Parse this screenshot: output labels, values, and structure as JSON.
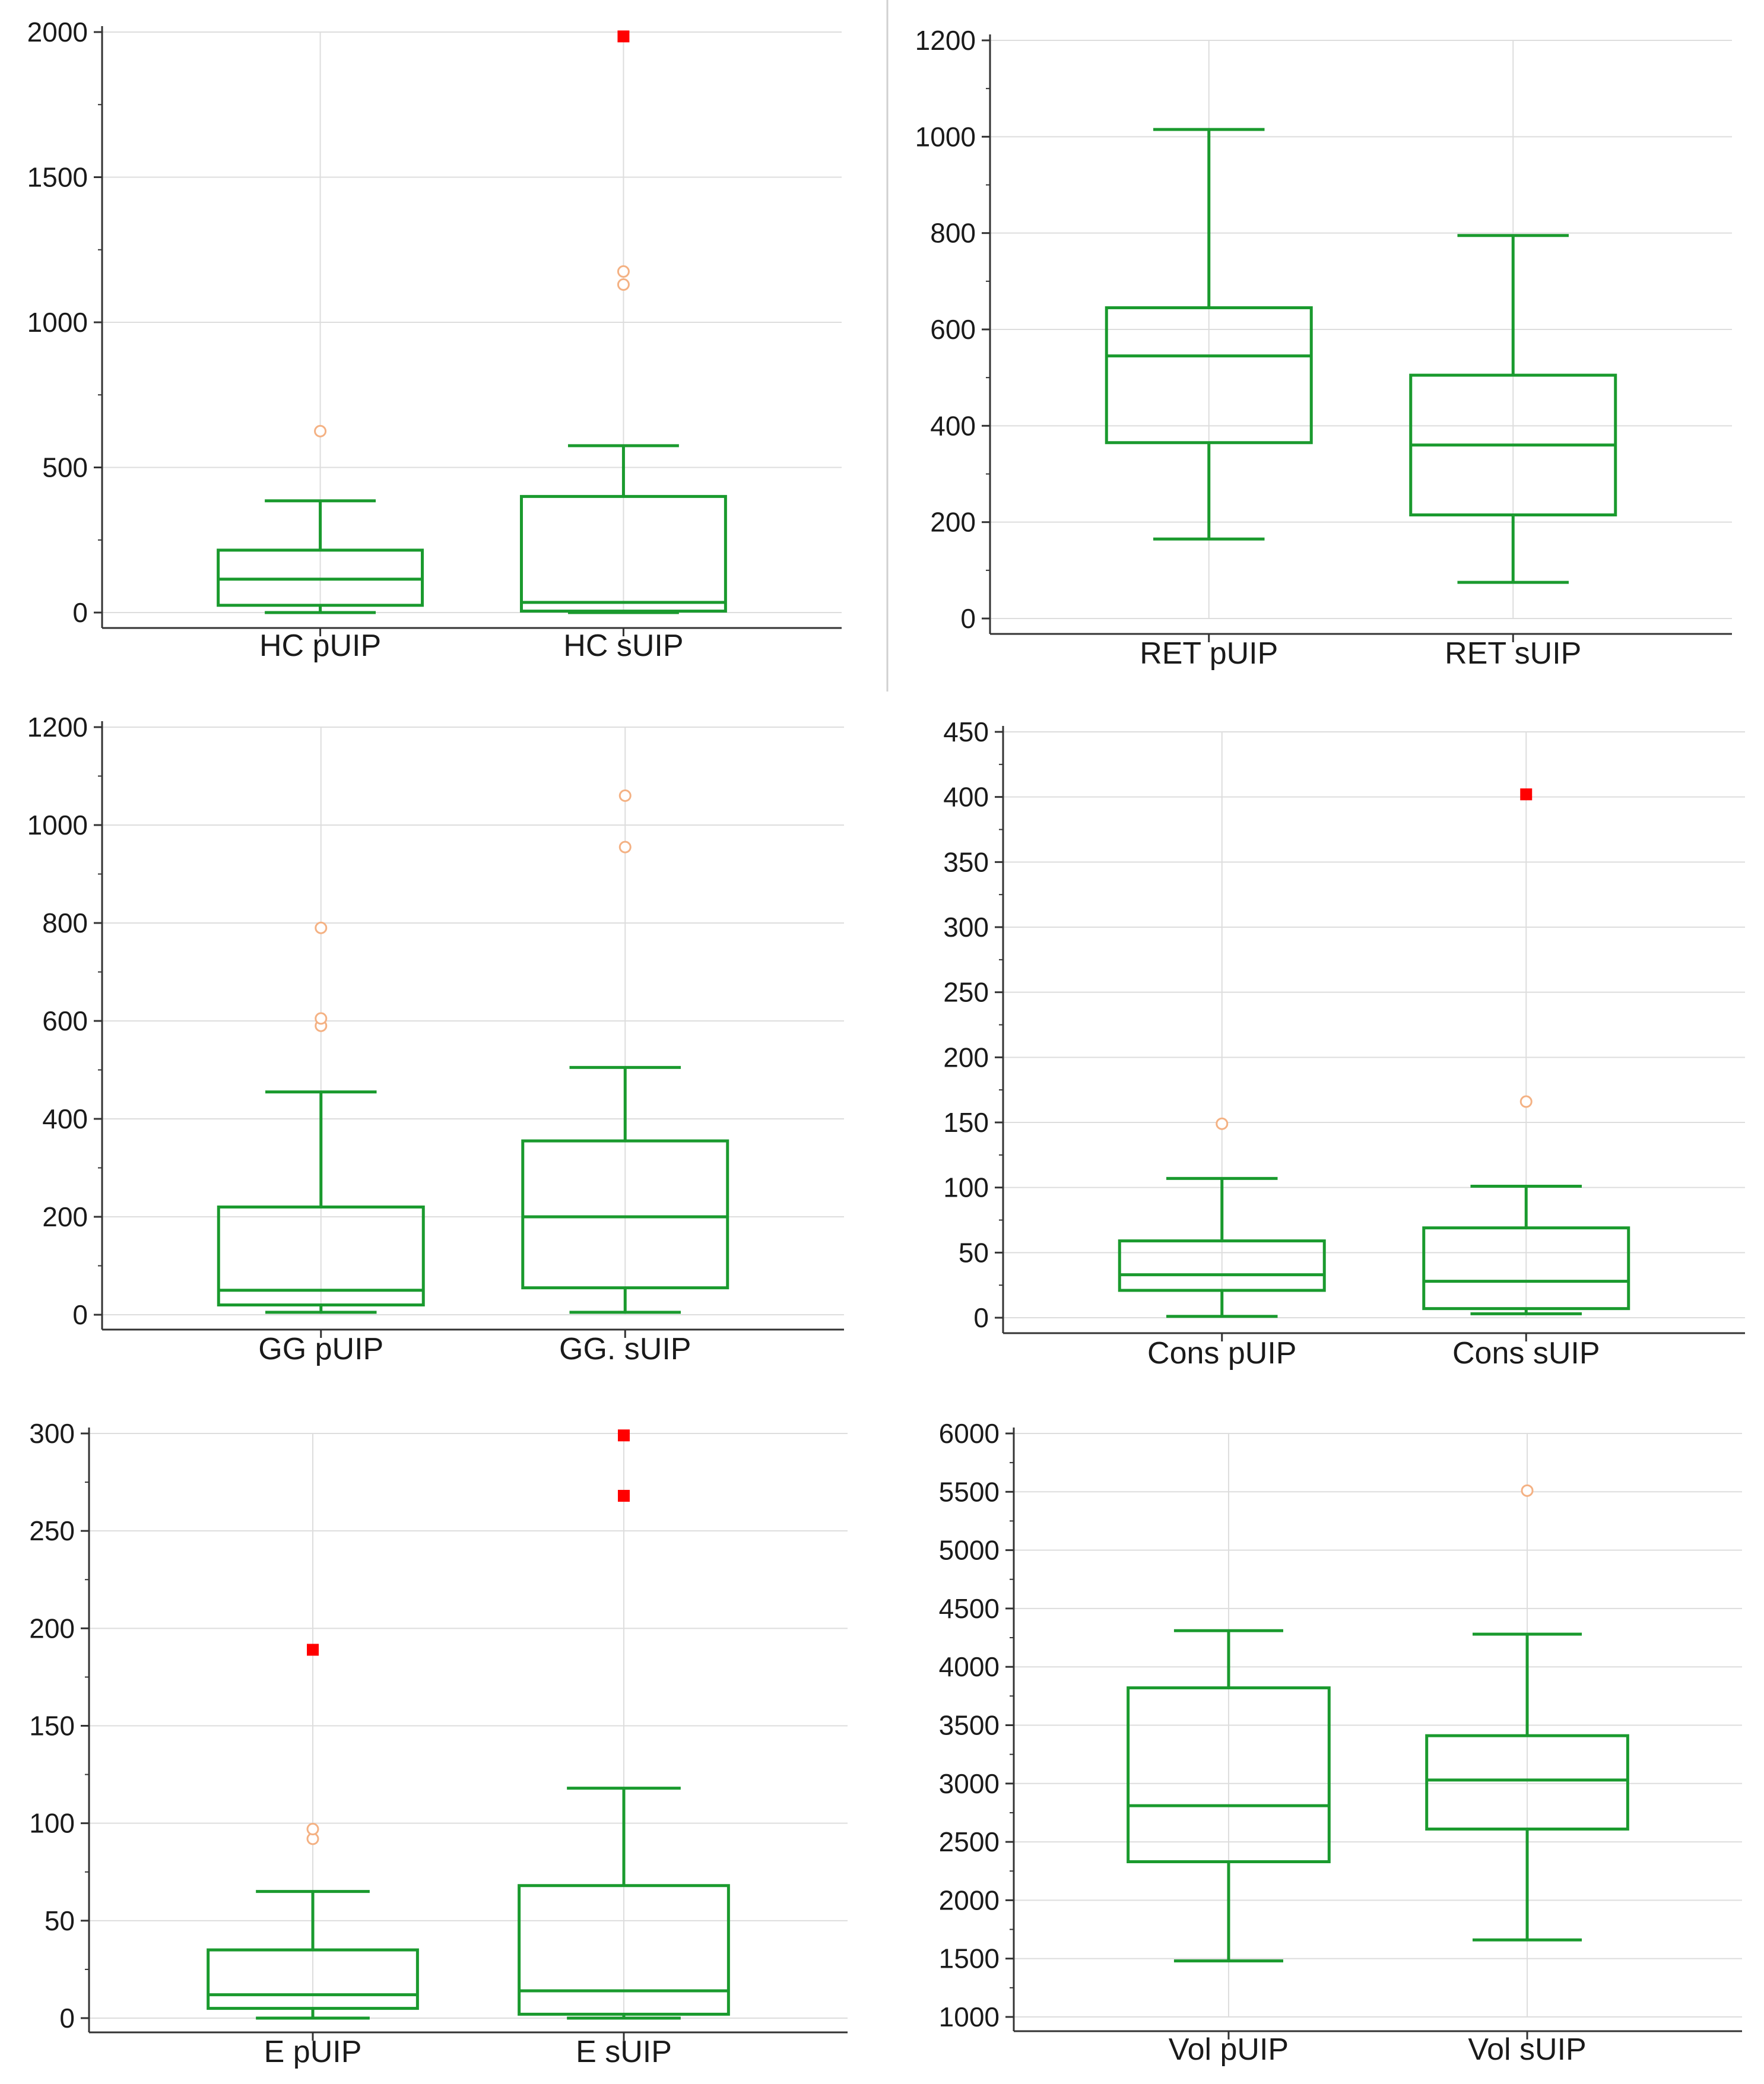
{
  "colors": {
    "box": "#1a9a2e",
    "outlier_far": "#ff0000",
    "outlier_near": "#f4b183",
    "grid": "#dddddd",
    "axis": "#333333"
  },
  "chart_data": [
    {
      "type": "box",
      "title": "",
      "ylim": [
        0,
        2000
      ],
      "yticks": [
        0,
        500,
        1000,
        1500,
        2000
      ],
      "categories": [
        "HC pUIP",
        "HC sUIP"
      ],
      "boxes": [
        {
          "whisker_low": 0,
          "q1": 25,
          "median": 115,
          "q3": 215,
          "whisker_high": 385,
          "outliers_near": [
            625
          ],
          "outliers_far": []
        },
        {
          "whisker_low": 0,
          "q1": 5,
          "median": 35,
          "q3": 400,
          "whisker_high": 575,
          "outliers_near": [
            1130,
            1175
          ],
          "outliers_far": [
            1985
          ]
        }
      ]
    },
    {
      "type": "box",
      "title": "",
      "ylim": [
        0,
        1200
      ],
      "yticks": [
        0,
        200,
        400,
        600,
        800,
        1000,
        1200
      ],
      "categories": [
        "RET pUIP",
        "RET sUIP"
      ],
      "boxes": [
        {
          "whisker_low": 165,
          "q1": 365,
          "median": 545,
          "q3": 645,
          "whisker_high": 1015,
          "outliers_near": [],
          "outliers_far": []
        },
        {
          "whisker_low": 75,
          "q1": 215,
          "median": 360,
          "q3": 505,
          "whisker_high": 795,
          "outliers_near": [],
          "outliers_far": []
        }
      ]
    },
    {
      "type": "box",
      "title": "",
      "ylim": [
        0,
        1200
      ],
      "yticks": [
        0,
        200,
        400,
        600,
        800,
        1000,
        1200
      ],
      "categories": [
        "GG pUIP",
        "GG. sUIP"
      ],
      "boxes": [
        {
          "whisker_low": 5,
          "q1": 20,
          "median": 50,
          "q3": 220,
          "whisker_high": 455,
          "outliers_near": [
            590,
            605,
            790
          ],
          "outliers_far": []
        },
        {
          "whisker_low": 5,
          "q1": 55,
          "median": 200,
          "q3": 355,
          "whisker_high": 505,
          "outliers_near": [
            955,
            1060
          ],
          "outliers_far": []
        }
      ]
    },
    {
      "type": "box",
      "title": "",
      "ylim": [
        0,
        450
      ],
      "yticks": [
        0,
        50,
        100,
        150,
        200,
        250,
        300,
        350,
        400,
        450
      ],
      "categories": [
        "Cons pUIP",
        "Cons sUIP"
      ],
      "boxes": [
        {
          "whisker_low": 1,
          "q1": 21,
          "median": 33,
          "q3": 59,
          "whisker_high": 107,
          "outliers_near": [
            149
          ],
          "outliers_far": []
        },
        {
          "whisker_low": 3,
          "q1": 7,
          "median": 28,
          "q3": 69,
          "whisker_high": 101,
          "outliers_near": [
            166
          ],
          "outliers_far": [
            402
          ]
        }
      ]
    },
    {
      "type": "box",
      "title": "",
      "ylim": [
        0,
        300
      ],
      "yticks": [
        0,
        50,
        100,
        150,
        200,
        250,
        300
      ],
      "categories": [
        "E pUIP",
        "E sUIP"
      ],
      "boxes": [
        {
          "whisker_low": 0,
          "q1": 5,
          "median": 12,
          "q3": 35,
          "whisker_high": 65,
          "outliers_near": [
            92,
            97
          ],
          "outliers_far": [
            189
          ]
        },
        {
          "whisker_low": 0,
          "q1": 2,
          "median": 14,
          "q3": 68,
          "whisker_high": 118,
          "outliers_near": [],
          "outliers_far": [
            268,
            299
          ]
        }
      ]
    },
    {
      "type": "box",
      "title": "",
      "ylim": [
        1000,
        6000
      ],
      "yticks": [
        1000,
        1500,
        2000,
        2500,
        3000,
        3500,
        4000,
        4500,
        5000,
        5500,
        6000
      ],
      "categories": [
        "Vol pUIP",
        "Vol sUIP"
      ],
      "boxes": [
        {
          "whisker_low": 1480,
          "q1": 2330,
          "median": 2810,
          "q3": 3820,
          "whisker_high": 4310,
          "outliers_near": [],
          "outliers_far": []
        },
        {
          "whisker_low": 1660,
          "q1": 2610,
          "median": 3030,
          "q3": 3410,
          "whisker_high": 4280,
          "outliers_near": [
            5510
          ],
          "outliers_far": []
        }
      ]
    }
  ]
}
